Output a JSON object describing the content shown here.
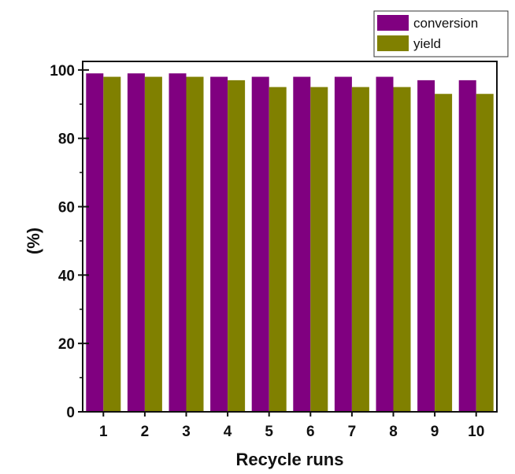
{
  "chart_data": {
    "type": "bar",
    "title": "",
    "xlabel": "Recycle runs",
    "ylabel": "(%)",
    "categories": [
      "1",
      "2",
      "3",
      "4",
      "5",
      "6",
      "7",
      "8",
      "9",
      "10"
    ],
    "series": [
      {
        "name": "conversion",
        "color": "#800080",
        "values": [
          99,
          99,
          99,
          98,
          98,
          98,
          98,
          98,
          97,
          97
        ]
      },
      {
        "name": "yield",
        "color": "#808000",
        "values": [
          98,
          98,
          98,
          97,
          95,
          95,
          95,
          95,
          93,
          93
        ]
      }
    ],
    "ylim": [
      0,
      100
    ],
    "yticks": [
      0,
      20,
      40,
      60,
      80,
      100
    ],
    "grid": false,
    "legend_position": "top-right"
  }
}
